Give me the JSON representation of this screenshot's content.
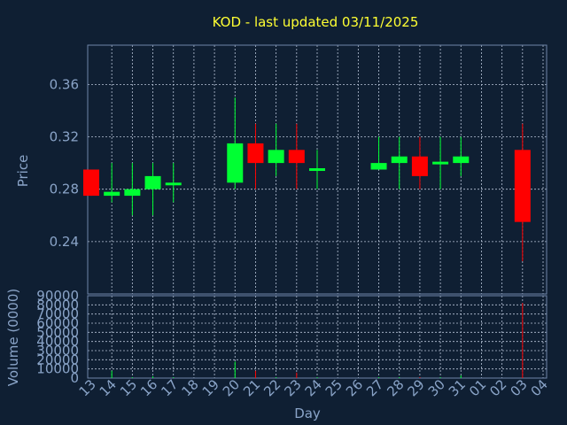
{
  "chart_data": {
    "type": "candlestick",
    "title": "KOD - last updated 03/11/2025",
    "xlabel": "Day",
    "price_panel": {
      "ylabel": "Price",
      "ylim": [
        0.2,
        0.39
      ],
      "yticks": [
        0.24,
        0.28,
        0.32,
        0.36
      ],
      "ytick_labels": [
        "0.24",
        "0.28",
        "0.32",
        "0.36"
      ],
      "grid": true
    },
    "volume_panel": {
      "ylabel": "Volume (0000)",
      "ylim": [
        0,
        90000
      ],
      "yticks": [
        0,
        10000,
        20000,
        30000,
        40000,
        50000,
        60000,
        70000,
        80000,
        90000
      ],
      "ytick_labels": [
        "0",
        "10000",
        "20000",
        "30000",
        "40000",
        "50000",
        "60000",
        "70000",
        "80000",
        "90000"
      ],
      "grid": true
    },
    "categories": [
      "13",
      "14",
      "15",
      "16",
      "17",
      "18",
      "19",
      "20",
      "21",
      "22",
      "23",
      "24",
      "25",
      "26",
      "27",
      "28",
      "29",
      "30",
      "31",
      "01",
      "02",
      "03",
      "04"
    ],
    "candles": [
      {
        "day": "13",
        "open": 0.295,
        "high": 0.295,
        "low": 0.275,
        "close": 0.275,
        "volume": 0
      },
      {
        "day": "14",
        "open": 0.275,
        "high": 0.3,
        "low": 0.27,
        "close": 0.278,
        "volume": 8000
      },
      {
        "day": "15",
        "open": 0.275,
        "high": 0.3,
        "low": 0.26,
        "close": 0.28,
        "volume": 1000
      },
      {
        "day": "16",
        "open": 0.28,
        "high": 0.3,
        "low": 0.26,
        "close": 0.29,
        "volume": 2000
      },
      {
        "day": "17",
        "open": 0.284,
        "high": 0.3,
        "low": 0.27,
        "close": 0.285,
        "volume": 1000
      },
      {
        "day": "18",
        "open": null,
        "high": null,
        "low": null,
        "close": null,
        "volume": 0
      },
      {
        "day": "19",
        "open": null,
        "high": null,
        "low": null,
        "close": null,
        "volume": 0
      },
      {
        "day": "20",
        "open": 0.285,
        "high": 0.35,
        "low": 0.28,
        "close": 0.315,
        "volume": 18000
      },
      {
        "day": "21",
        "open": 0.315,
        "high": 0.33,
        "low": 0.28,
        "close": 0.3,
        "volume": 8000
      },
      {
        "day": "22",
        "open": 0.3,
        "high": 0.33,
        "low": 0.29,
        "close": 0.31,
        "volume": 1000
      },
      {
        "day": "23",
        "open": 0.31,
        "high": 0.33,
        "low": 0.28,
        "close": 0.3,
        "volume": 6000
      },
      {
        "day": "24",
        "open": 0.294,
        "high": 0.31,
        "low": 0.28,
        "close": 0.296,
        "volume": 1000
      },
      {
        "day": "25",
        "open": null,
        "high": null,
        "low": null,
        "close": null,
        "volume": 0
      },
      {
        "day": "26",
        "open": null,
        "high": null,
        "low": null,
        "close": null,
        "volume": 0
      },
      {
        "day": "27",
        "open": 0.295,
        "high": 0.32,
        "low": 0.295,
        "close": 0.3,
        "volume": 1000
      },
      {
        "day": "28",
        "open": 0.3,
        "high": 0.32,
        "low": 0.28,
        "close": 0.305,
        "volume": 1000
      },
      {
        "day": "29",
        "open": 0.305,
        "high": 0.32,
        "low": 0.28,
        "close": 0.29,
        "volume": 1000
      },
      {
        "day": "30",
        "open": 0.299,
        "high": 0.32,
        "low": 0.28,
        "close": 0.301,
        "volume": 1000
      },
      {
        "day": "31",
        "open": 0.3,
        "high": 0.32,
        "low": 0.29,
        "close": 0.305,
        "volume": 3000
      },
      {
        "day": "01",
        "open": null,
        "high": null,
        "low": null,
        "close": null,
        "volume": 0
      },
      {
        "day": "02",
        "open": null,
        "high": null,
        "low": null,
        "close": null,
        "volume": 0
      },
      {
        "day": "03",
        "open": 0.31,
        "high": 0.33,
        "low": 0.225,
        "close": 0.255,
        "volume": 82000
      },
      {
        "day": "04",
        "open": null,
        "high": null,
        "low": null,
        "close": null,
        "volume": 0
      }
    ],
    "colors": {
      "background": "#0f1f33",
      "up": "#00ff33",
      "down": "#ff0000",
      "title": "#ffff33",
      "axis_text": "#8aa4c8",
      "grid": "#b8c4d8"
    }
  }
}
